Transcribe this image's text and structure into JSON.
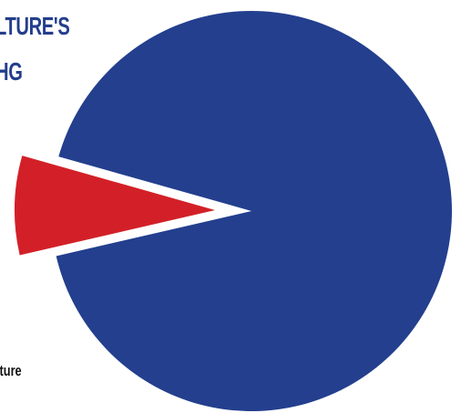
{
  "chart_data": {
    "type": "pie",
    "title_lines": [
      "LTURE'S",
      "HG"
    ],
    "slices": [
      {
        "label": "",
        "value": 92,
        "color": "#233f8e",
        "exploded": false
      },
      {
        "label": "lture",
        "value": 8,
        "color": "#d32028",
        "exploded": true
      }
    ]
  }
}
